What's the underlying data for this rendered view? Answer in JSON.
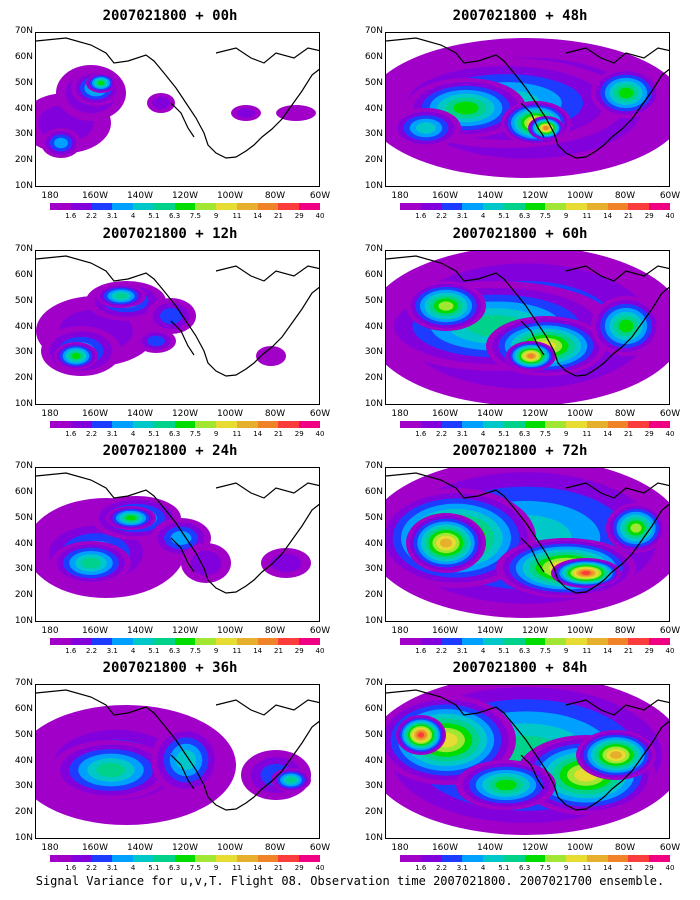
{
  "caption": "Signal Variance for u,v,T. Flight 08. Observation time 2007021800. 2007021700 ensemble.",
  "axes": {
    "y_ticks": [
      "70N",
      "60N",
      "50N",
      "40N",
      "30N",
      "20N",
      "10N"
    ],
    "x_ticks": [
      "180",
      "160W",
      "140W",
      "120W",
      "100W",
      "80W",
      "60W"
    ]
  },
  "colorbar": {
    "labels": [
      "1.6",
      "2.2",
      "3.1",
      "4",
      "5.1",
      "6.3",
      "7.5",
      "9",
      "11",
      "14",
      "21",
      "29",
      "40"
    ],
    "colors": [
      "#a000c8",
      "#8200dc",
      "#1e3cff",
      "#00a0ff",
      "#00c8c8",
      "#00d28c",
      "#00dc00",
      "#a0e632",
      "#e6dc32",
      "#e6af2d",
      "#f08228",
      "#fa3c3c",
      "#f00082"
    ]
  },
  "chart_data": [
    {
      "type": "heatmap",
      "title": "2007021800 + 00h",
      "ylim": [
        "10N",
        "70N"
      ],
      "xlim": [
        "180",
        "60W"
      ],
      "colorbar_range": [
        1.6,
        40
      ]
    },
    {
      "type": "heatmap",
      "title": "2007021800 + 12h",
      "ylim": [
        "10N",
        "70N"
      ],
      "xlim": [
        "180",
        "60W"
      ],
      "colorbar_range": [
        1.6,
        40
      ]
    },
    {
      "type": "heatmap",
      "title": "2007021800 + 24h",
      "ylim": [
        "10N",
        "70N"
      ],
      "xlim": [
        "180",
        "60W"
      ],
      "colorbar_range": [
        1.6,
        40
      ]
    },
    {
      "type": "heatmap",
      "title": "2007021800 + 36h",
      "ylim": [
        "10N",
        "70N"
      ],
      "xlim": [
        "180",
        "60W"
      ],
      "colorbar_range": [
        1.6,
        40
      ]
    },
    {
      "type": "heatmap",
      "title": "2007021800 + 48h",
      "ylim": [
        "10N",
        "70N"
      ],
      "xlim": [
        "180",
        "60W"
      ],
      "colorbar_range": [
        1.6,
        40
      ]
    },
    {
      "type": "heatmap",
      "title": "2007021800 + 60h",
      "ylim": [
        "10N",
        "70N"
      ],
      "xlim": [
        "180",
        "60W"
      ],
      "colorbar_range": [
        1.6,
        40
      ]
    },
    {
      "type": "heatmap",
      "title": "2007021800 + 72h",
      "ylim": [
        "10N",
        "70N"
      ],
      "xlim": [
        "180",
        "60W"
      ],
      "colorbar_range": [
        1.6,
        40
      ]
    },
    {
      "type": "heatmap",
      "title": "2007021800 + 84h",
      "ylim": [
        "10N",
        "70N"
      ],
      "xlim": [
        "180",
        "60W"
      ],
      "colorbar_range": [
        1.6,
        40
      ]
    }
  ]
}
